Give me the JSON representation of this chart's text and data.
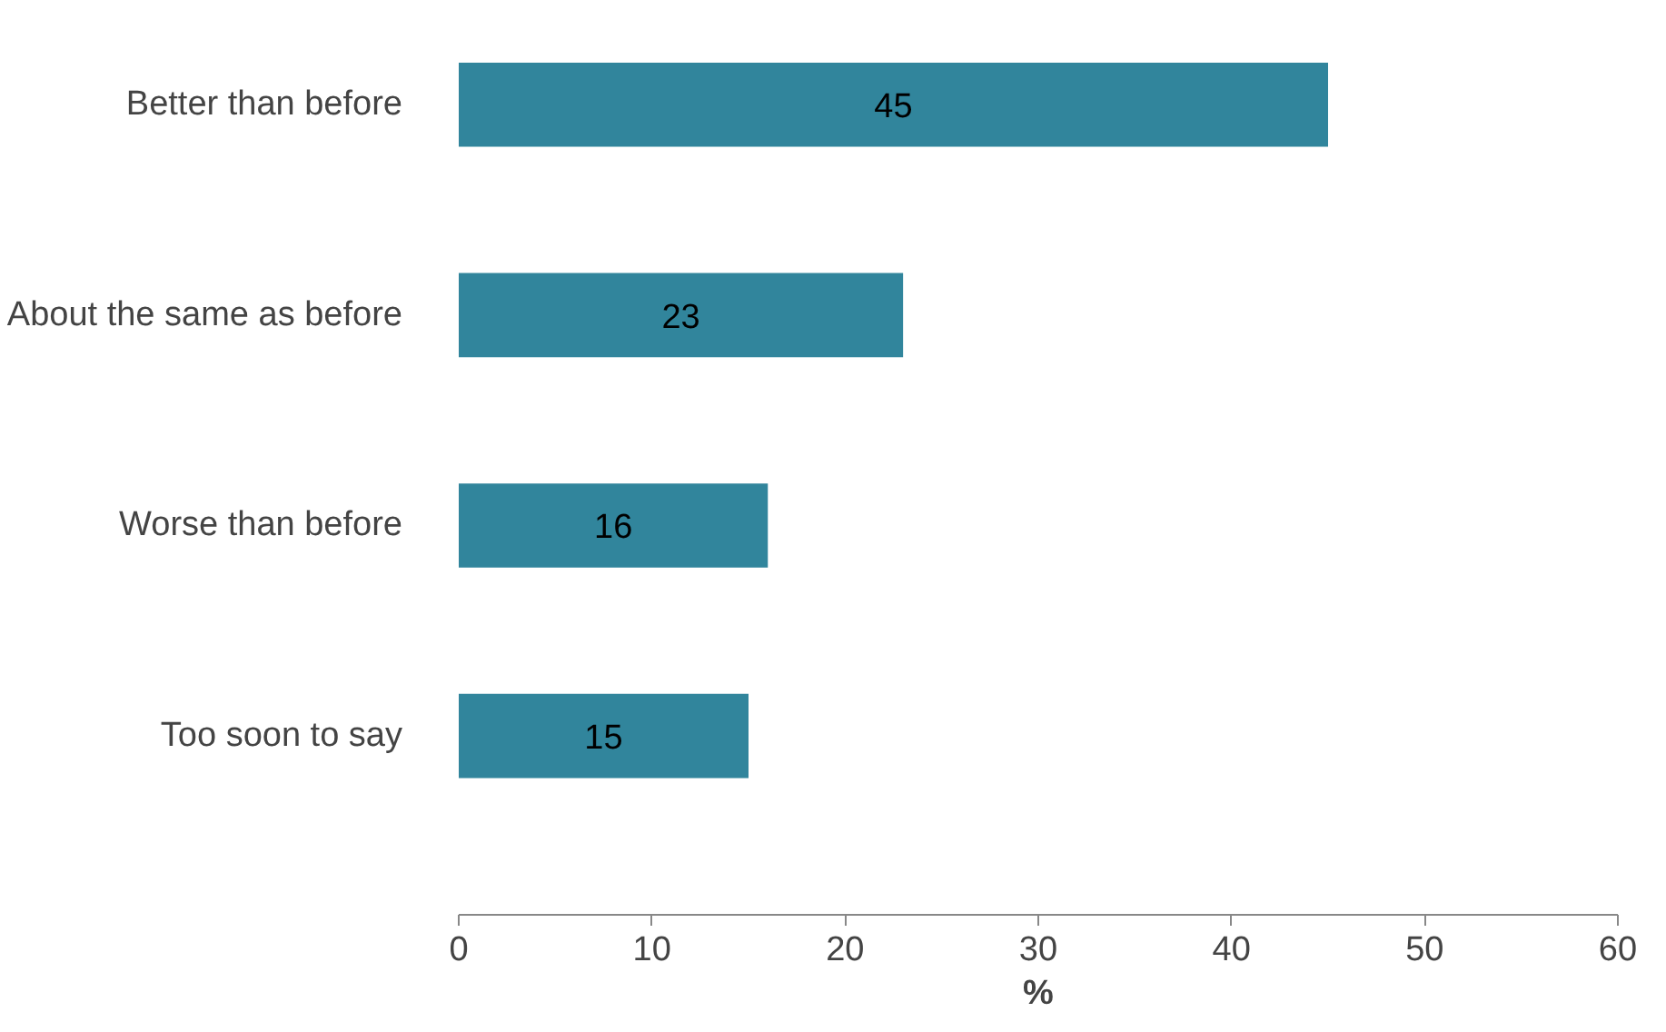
{
  "chart_data": {
    "type": "bar",
    "orientation": "horizontal",
    "categories": [
      "Better than before",
      "About the same as before",
      "Worse than before",
      "Too soon to say"
    ],
    "values": [
      45,
      23,
      16,
      15
    ],
    "color": "#31859c",
    "xlim": [
      0,
      60
    ],
    "xticks": [
      0,
      10,
      20,
      30,
      40,
      50,
      60
    ],
    "xlabel": "%",
    "data_labels": true,
    "grid": false
  }
}
